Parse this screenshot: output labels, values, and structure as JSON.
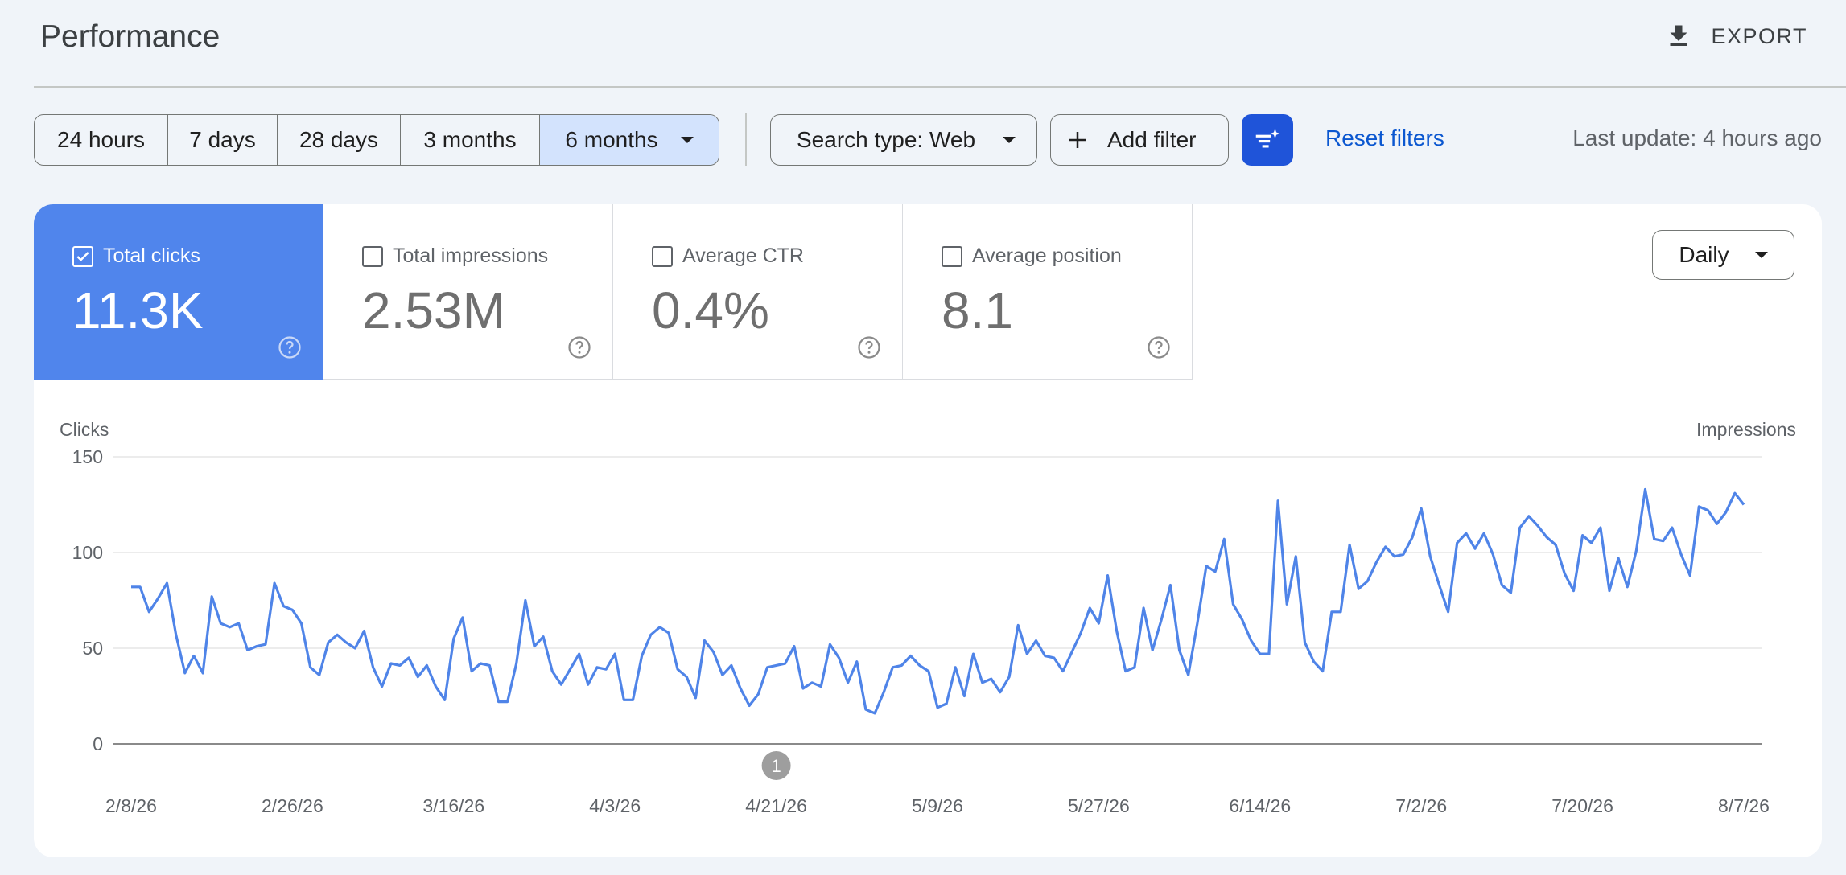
{
  "header": {
    "title": "Performance",
    "export_label": "EXPORT",
    "export_icon": "download-icon"
  },
  "filters": {
    "ranges": [
      {
        "label": "24 hours",
        "selected": false
      },
      {
        "label": "7 days",
        "selected": false
      },
      {
        "label": "28 days",
        "selected": false
      },
      {
        "label": "3 months",
        "selected": false
      },
      {
        "label": "6 months",
        "selected": true
      }
    ],
    "search_type": "Search type: Web",
    "add_filter": "Add filter",
    "reset_filters": "Reset filters",
    "last_update": "Last update: 4 hours ago"
  },
  "metrics": [
    {
      "label": "Total clicks",
      "value": "11.3K",
      "checked": true
    },
    {
      "label": "Total impressions",
      "value": "2.53M",
      "checked": false
    },
    {
      "label": "Average CTR",
      "value": "0.4%",
      "checked": false
    },
    {
      "label": "Average position",
      "value": "8.1",
      "checked": false
    }
  ],
  "granularity": "Daily",
  "colors": {
    "accent": "#5085ec",
    "line": "#4f84e8",
    "tune_button": "#1f54d9",
    "link": "#0b57d0"
  },
  "annotation": {
    "label": "1",
    "date": "4/21/26"
  },
  "chart_data": {
    "type": "line",
    "ylabel": "Clicks",
    "y2label": "Impressions",
    "ylim": [
      0,
      150
    ],
    "yticks": [
      0,
      50,
      100,
      150
    ],
    "xticks": [
      "2/8/26",
      "2/26/26",
      "3/16/26",
      "4/3/26",
      "4/21/26",
      "5/9/26",
      "5/27/26",
      "6/14/26",
      "7/2/26",
      "7/20/26",
      "8/7/26"
    ],
    "x_start": "2/8/26",
    "x_end": "8/7/26",
    "grid": true,
    "series": [
      {
        "name": "Clicks",
        "values": [
          82,
          82,
          69,
          76,
          84,
          57,
          37,
          46,
          37,
          77,
          63,
          61,
          63,
          49,
          51,
          52,
          84,
          72,
          70,
          63,
          40,
          36,
          53,
          57,
          53,
          50,
          59,
          40,
          30,
          42,
          41,
          45,
          35,
          41,
          30,
          23,
          55,
          66,
          38,
          42,
          41,
          22,
          22,
          42,
          75,
          51,
          56,
          38,
          31,
          39,
          47,
          31,
          40,
          39,
          47,
          23,
          23,
          46,
          57,
          61,
          58,
          39,
          35,
          24,
          54,
          48,
          36,
          41,
          29,
          20,
          26,
          40,
          41,
          42,
          51,
          29,
          32,
          30,
          52,
          45,
          32,
          43,
          18,
          16,
          27,
          40,
          41,
          46,
          41,
          38,
          19,
          21,
          40,
          25,
          47,
          32,
          34,
          27,
          35,
          62,
          47,
          54,
          46,
          45,
          38,
          48,
          58,
          71,
          63,
          88,
          59,
          38,
          40,
          71,
          49,
          65,
          83,
          49,
          36,
          63,
          93,
          90,
          107,
          73,
          65,
          54,
          47,
          47,
          127,
          73,
          98,
          53,
          43,
          38,
          69,
          69,
          104,
          81,
          85,
          95,
          103,
          98,
          99,
          108,
          123,
          98,
          83,
          69,
          105,
          110,
          102,
          110,
          99,
          83,
          79,
          113,
          119,
          114,
          108,
          104,
          89,
          80,
          109,
          105,
          113,
          80,
          97,
          82,
          101,
          133,
          107,
          106,
          113,
          99,
          88,
          124,
          122,
          115,
          121,
          131,
          125
        ]
      }
    ]
  }
}
